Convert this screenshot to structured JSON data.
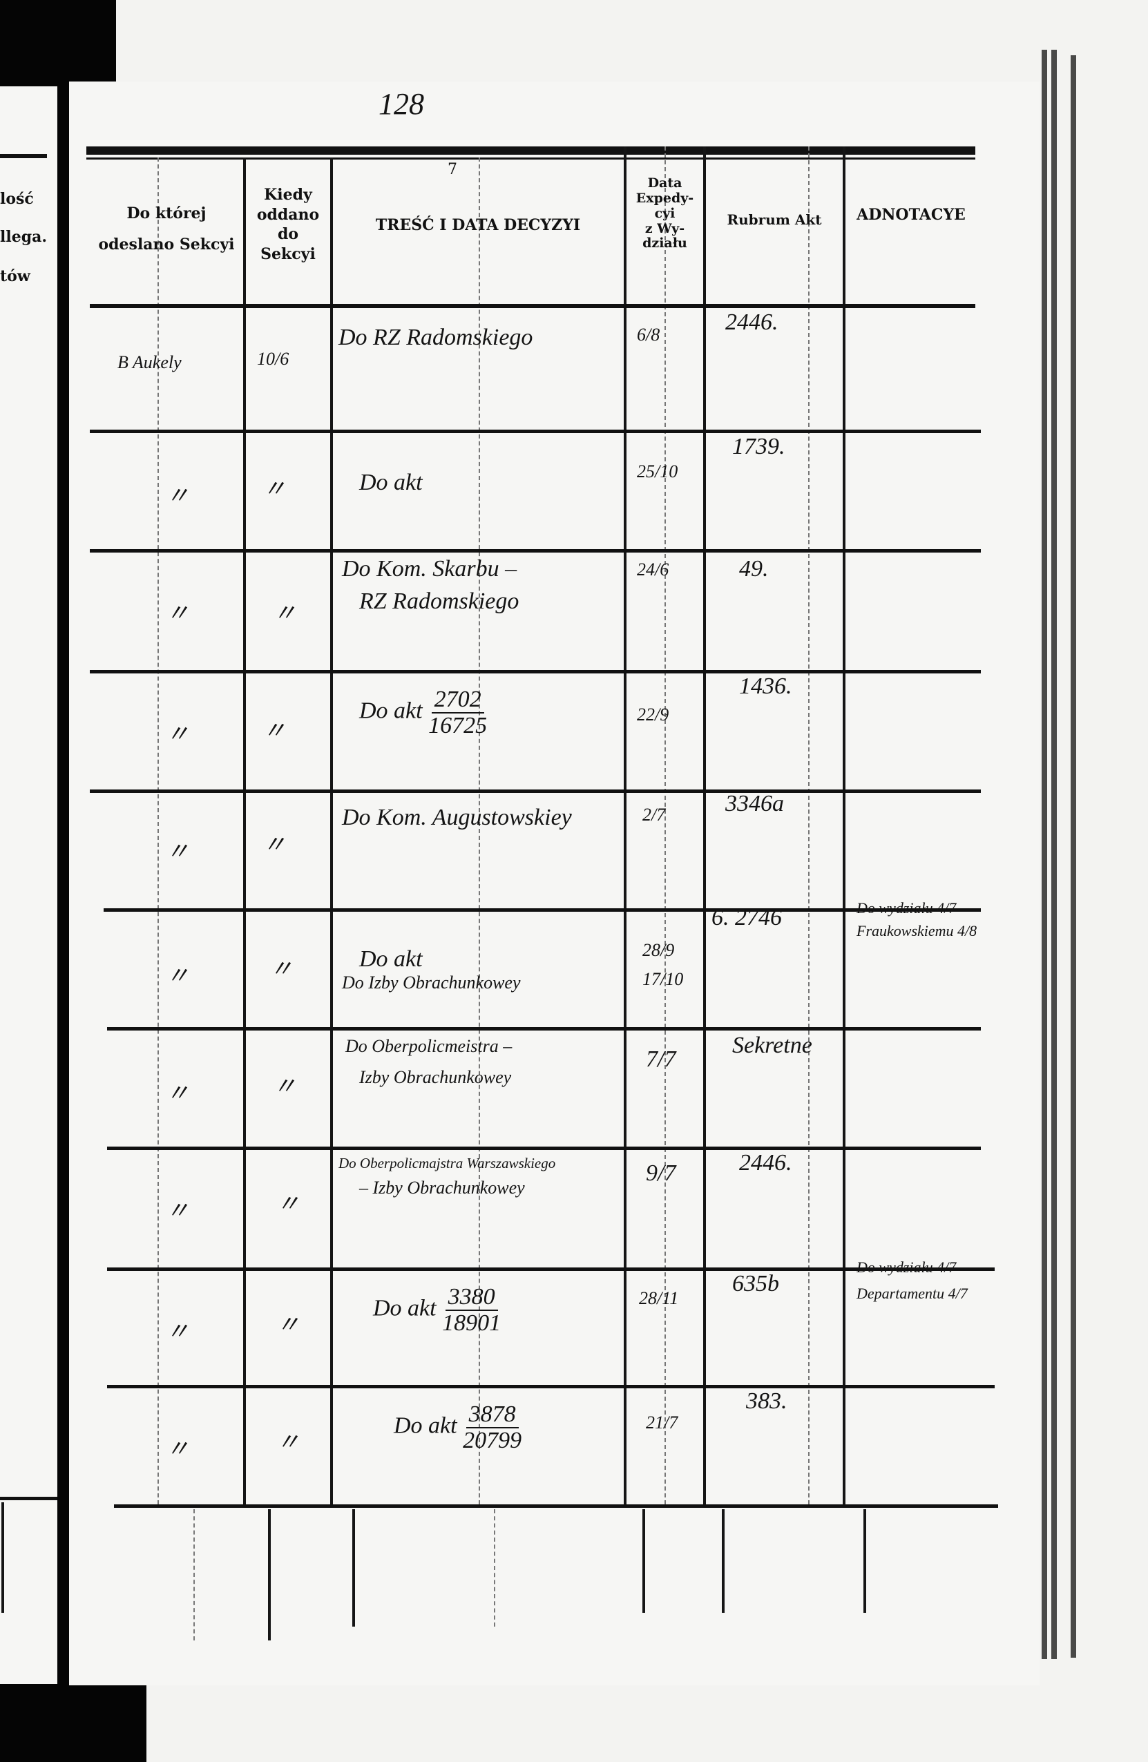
{
  "page_number": "128",
  "header_mark": "7",
  "left_page_fragments": [
    "lość",
    "llega.",
    "tów"
  ],
  "columns": [
    {
      "label_lines": [
        "Do której",
        "odeslano Sekcyi"
      ]
    },
    {
      "label_lines": [
        "Kiedy",
        "oddano",
        "do",
        "Sekcyi"
      ]
    },
    {
      "label_lines": [
        "TREŚĆ I DATA DECYZYI"
      ]
    },
    {
      "label_lines": [
        "Data",
        "Expedy-",
        "cyi",
        "z Wy-",
        "działu"
      ]
    },
    {
      "label_lines": [
        "Rubrum Akt"
      ]
    },
    {
      "label_lines": [
        "ADNOTACYE"
      ]
    }
  ],
  "rows": [
    {
      "sekcja": "B Aukely",
      "kiedy": "10/6",
      "tresc": [
        "Do RZ Radomskiego"
      ],
      "data": "6/8",
      "rubrum": "2446.",
      "adnotacye": []
    },
    {
      "sekcja": "〃",
      "kiedy": "〃",
      "tresc": [
        "Do akt"
      ],
      "data": "25/10",
      "rubrum": "1739.",
      "adnotacye": []
    },
    {
      "sekcja": "〃",
      "kiedy": "〃",
      "tresc": [
        "Do Kom. Skarbu –",
        "RZ Radomskiego"
      ],
      "data": "24/6",
      "rubrum": "49.",
      "adnotacye": []
    },
    {
      "sekcja": "〃",
      "kiedy": "〃",
      "tresc": [
        "Do akt"
      ],
      "fraction": [
        "2702",
        "16725"
      ],
      "data": "22/9",
      "rubrum": "1436.",
      "adnotacye": []
    },
    {
      "sekcja": "〃",
      "kiedy": "〃",
      "tresc": [
        "Do Kom. Augustowskiey"
      ],
      "data": "2/7",
      "rubrum": "3346a",
      "adnotacye": []
    },
    {
      "sekcja": "〃",
      "kiedy": "〃",
      "tresc": [
        "Do akt",
        "Do Izby Obrachunkowey"
      ],
      "data": "28/9 17/10",
      "rubrum": "6. 2746",
      "adnotacye": [
        "Do wydziału 4/7",
        "Fraukowskiemu 4/8"
      ]
    },
    {
      "sekcja": "〃",
      "kiedy": "〃",
      "tresc": [
        "Do Oberpolicmeistra –",
        "Izby Obrachunkowey"
      ],
      "data": "7/7",
      "rubrum": "Sekretne",
      "adnotacye": []
    },
    {
      "sekcja": "〃",
      "kiedy": "〃",
      "tresc": [
        "Do Oberpolicmajstra Warszawskiego",
        "– Izby Obrachunkowey"
      ],
      "data": "9/7",
      "rubrum": "2446.",
      "adnotacye": []
    },
    {
      "sekcja": "〃",
      "kiedy": "〃",
      "tresc": [
        "Do akt"
      ],
      "fraction": [
        "3380",
        "18901"
      ],
      "data": "28/11",
      "rubrum": "635b",
      "adnotacye": [
        "Do wydziału 4/7",
        "Departamentu 4/7"
      ]
    },
    {
      "sekcja": "〃",
      "kiedy": "〃",
      "tresc": [
        "Do akt"
      ],
      "fraction": [
        "3878",
        "20799"
      ],
      "data": "21/7",
      "rubrum": "383.",
      "adnotacye": []
    }
  ]
}
